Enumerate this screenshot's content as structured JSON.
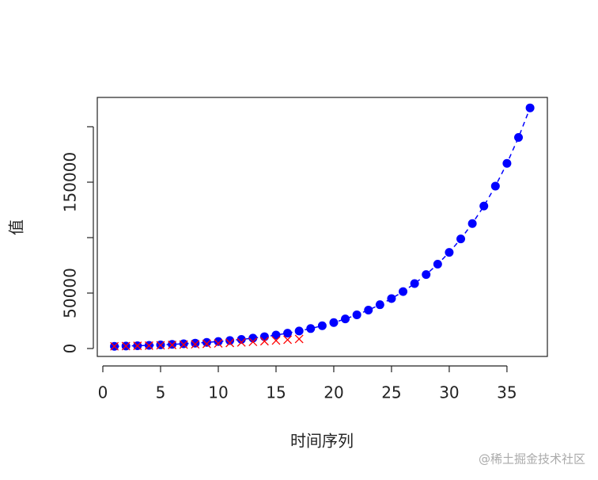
{
  "chart_data": {
    "type": "scatter",
    "x_label": "时间序列",
    "y_label": "值",
    "xlim": [
      -0.48,
      38.5
    ],
    "ylim": [
      -7143,
      226429
    ],
    "xticks": [
      0,
      5,
      10,
      15,
      20,
      25,
      30,
      35
    ],
    "yticks": [
      0,
      50000,
      {
        "value": 100000,
        "label": null
      },
      150000,
      {
        "value": 200000,
        "label": null
      }
    ],
    "series": [
      {
        "color": "#0000ff",
        "marker": "circle",
        "linestyle": "dashed",
        "x": [
          1,
          2,
          3,
          4,
          5,
          6,
          7,
          8,
          9,
          10,
          11,
          12,
          13,
          14,
          15,
          16,
          17,
          18,
          19,
          20,
          21,
          22,
          23,
          24,
          25,
          26,
          27,
          28,
          29,
          30,
          31,
          32,
          33,
          34,
          35,
          36,
          37
        ],
        "values": [
          1940,
          2210,
          2520,
          2870,
          3280,
          3740,
          4260,
          4860,
          5540,
          6310,
          7190,
          8200,
          9350,
          10660,
          12150,
          13850,
          15790,
          18000,
          20520,
          23390,
          26670,
          30400,
          34660,
          39510,
          45040,
          51350,
          58540,
          66730,
          76070,
          86720,
          98860,
          112700,
          128480,
          146470,
          166970,
          190350,
          217000
        ]
      },
      {
        "color": "#ff0000",
        "marker": "x",
        "x": [
          1,
          2,
          3,
          4,
          5,
          6,
          7,
          8,
          9,
          10,
          11,
          12,
          13,
          14,
          15,
          16,
          17
        ],
        "values": [
          2000,
          2200,
          2400,
          2600,
          2900,
          3200,
          3500,
          3800,
          4200,
          4600,
          5000,
          5500,
          6000,
          6600,
          7200,
          7900,
          8600
        ]
      }
    ]
  },
  "watermark": "@稀土掘金技术社区"
}
